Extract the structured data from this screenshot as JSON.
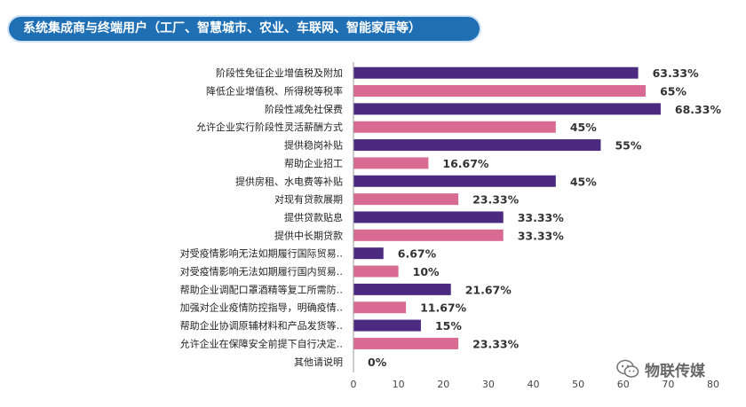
{
  "title": "系统集成商与终端用户（工厂、智慧城市、农业、车联网、智能家居等）",
  "watermark": "物联传媒",
  "colors": {
    "series_a": "#4b2a7f",
    "series_b": "#d96b93",
    "header": "#1f6fb5"
  },
  "chart_data": {
    "type": "bar",
    "orientation": "horizontal",
    "title": "系统集成商与终端用户（工厂、智慧城市、农业、车联网、智能家居等）",
    "categories": [
      "阶段性免征企业增值税及附加",
      "降低企业增值税、所得税等税率",
      "阶段性减免社保费",
      "允许企业实行阶段性灵活薪酬方式",
      "提供稳岗补贴",
      "帮助企业招工",
      "提供房租、水电费等补贴",
      "对现有贷款展期",
      "提供贷款贴息",
      "提供中长期贷款",
      "对受疫情影响无法如期履行国际贸易‥",
      "对受疫情影响无法如期履行国内贸易‥",
      "帮助企业调配口罩酒精等复工所需防‥",
      "加强对企业疫情防控指导，明确疫情‥",
      "帮助企业协调原辅材料和产品发货等‥",
      "允许企业在保障安全前提下自行决定‥",
      "其他请说明"
    ],
    "values": [
      63.33,
      65,
      68.33,
      45,
      55,
      16.67,
      45,
      23.33,
      33.33,
      33.33,
      6.67,
      10,
      21.67,
      11.67,
      15,
      23.33,
      0
    ],
    "value_labels": [
      "63.33%",
      "65%",
      "68.33%",
      "45%",
      "55%",
      "16.67%",
      "45%",
      "23.33%",
      "33.33%",
      "33.33%",
      "6.67%",
      "10%",
      "21.67%",
      "11.67%",
      "15%",
      "23.33%",
      "0%"
    ],
    "xlim": [
      0,
      80
    ],
    "xticks": [
      0,
      10,
      20,
      30,
      40,
      50,
      60,
      70,
      80
    ],
    "grid": false
  }
}
